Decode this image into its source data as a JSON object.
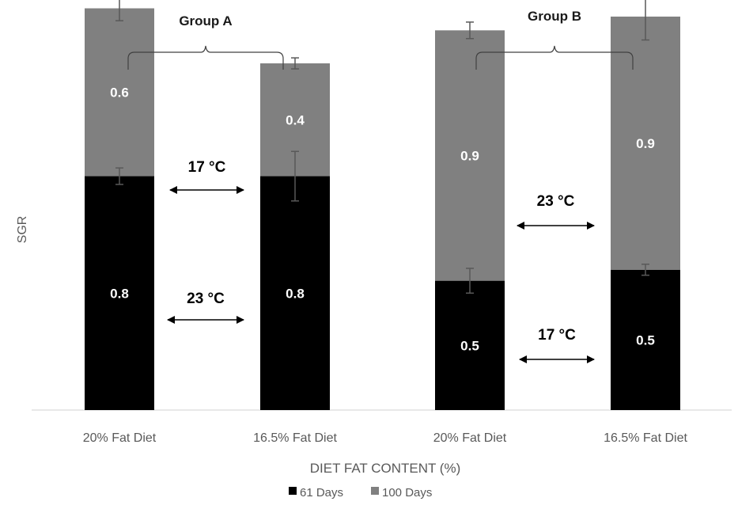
{
  "chart_data": {
    "type": "bar",
    "stacked": true,
    "title": "",
    "xlabel": "DIET FAT CONTENT (%)",
    "ylabel": "SGR",
    "ylim": [
      0,
      1.45
    ],
    "grid": false,
    "legend_position": "bottom",
    "categories": [
      "20% Fat Diet",
      "16.5% Fat Diet",
      "20% Fat Diet",
      "16.5% Fat Diet"
    ],
    "groups": [
      {
        "label": "Group A",
        "categories": [
          0,
          1
        ]
      },
      {
        "label": "Group B",
        "categories": [
          2,
          3
        ]
      }
    ],
    "series": [
      {
        "name": "61 Days",
        "color": "#000000",
        "values": [
          0.85,
          0.85,
          0.47,
          0.51
        ],
        "labels": [
          "0.8",
          "0.8",
          "0.5",
          "0.5"
        ],
        "label_color": "#ffffff",
        "error": [
          0.03,
          0.09,
          0.045,
          0.02
        ]
      },
      {
        "name": "100 Days",
        "color": "#808080",
        "values": [
          0.61,
          0.41,
          0.91,
          0.92
        ],
        "labels": [
          "0.6",
          "0.4",
          "0.9",
          "0.9"
        ],
        "label_color": "#ffffff",
        "error": [
          0.045,
          0.02,
          0.03,
          0.085
        ]
      }
    ],
    "annotations": [
      {
        "text": "17 °C",
        "group": 0,
        "level": "upper"
      },
      {
        "text": "23 °C",
        "group": 0,
        "level": "lower"
      },
      {
        "text": "23 °C",
        "group": 1,
        "level": "upper"
      },
      {
        "text": "17 °C",
        "group": 1,
        "level": "lower"
      }
    ]
  }
}
